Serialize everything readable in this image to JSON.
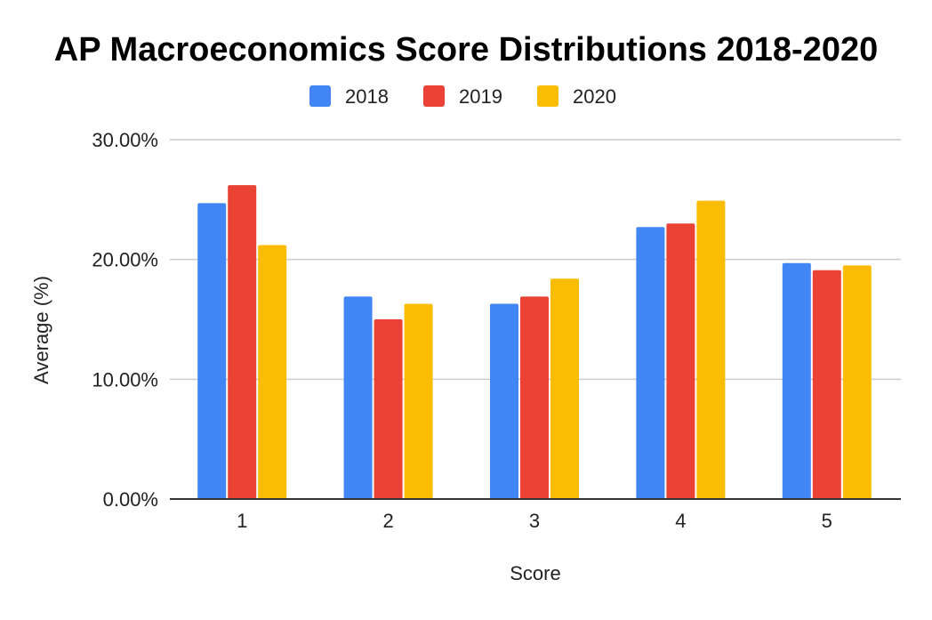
{
  "chart_data": {
    "type": "bar",
    "title": "AP Macroeconomics Score Distributions 2018-2020",
    "xlabel": "Score",
    "ylabel": "Average (%)",
    "categories": [
      "1",
      "2",
      "3",
      "4",
      "5"
    ],
    "series": [
      {
        "name": "2018",
        "color": "#4285F4",
        "values": [
          24.7,
          16.9,
          16.3,
          22.7,
          19.7
        ]
      },
      {
        "name": "2019",
        "color": "#EA4335",
        "values": [
          26.2,
          15.0,
          16.9,
          23.0,
          19.1
        ]
      },
      {
        "name": "2020",
        "color": "#FBBC04",
        "values": [
          21.2,
          16.3,
          18.4,
          24.9,
          19.5
        ]
      }
    ],
    "ylim": [
      0,
      30
    ],
    "yticks": [
      0,
      10,
      20,
      30
    ],
    "ytick_labels": [
      "0.00%",
      "10.00%",
      "20.00%",
      "30.00%"
    ],
    "grid": true,
    "legend_position": "top-center"
  }
}
